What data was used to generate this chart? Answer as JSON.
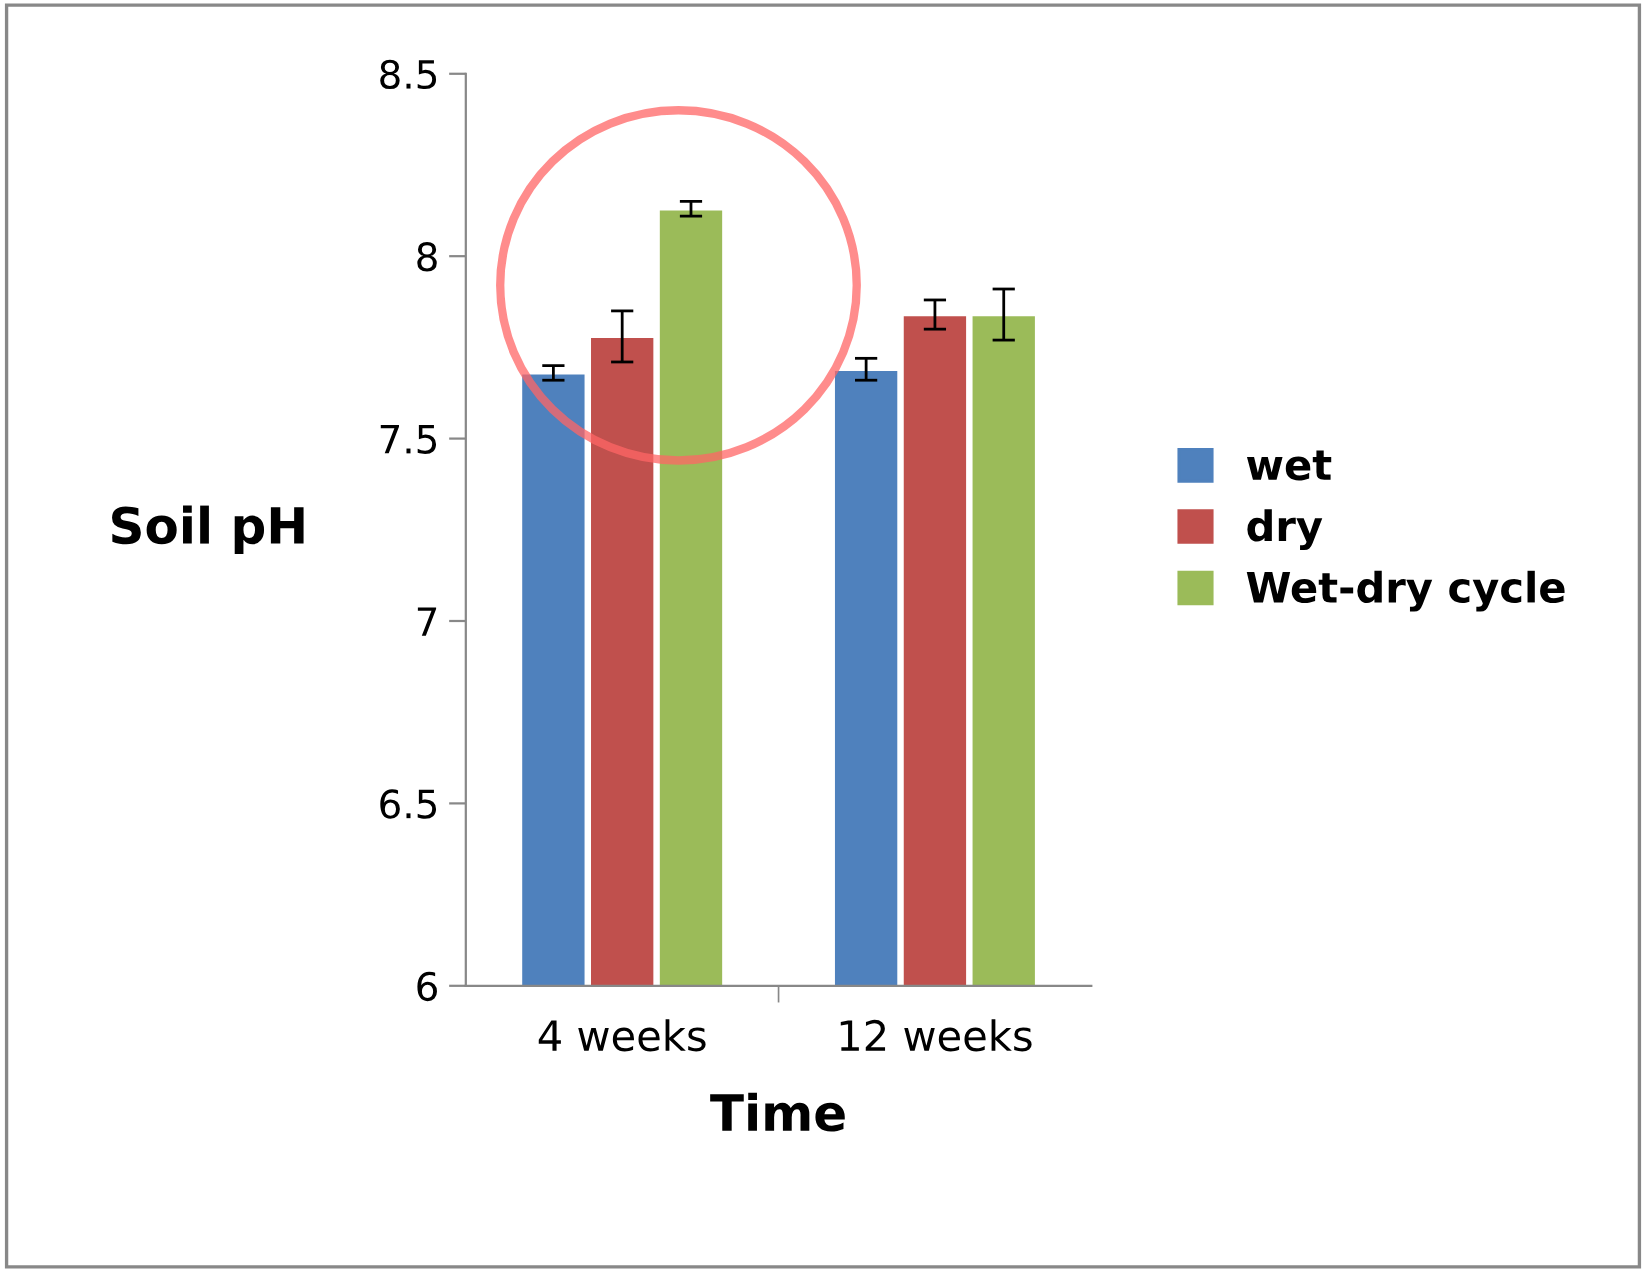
{
  "chart_data": {
    "type": "bar",
    "xlabel": "Time",
    "ylabel": "Soil pH",
    "categories": [
      "4 weeks",
      "12 weeks"
    ],
    "series": [
      {
        "name": "wet",
        "color": "#4f81bd",
        "values": [
          7.68,
          7.69
        ],
        "errors": [
          0.02,
          0.03
        ]
      },
      {
        "name": "dry",
        "color": "#c0504d",
        "values": [
          7.78,
          7.84
        ],
        "errors": [
          0.07,
          0.04
        ]
      },
      {
        "name": "Wet-dry cycle",
        "color": "#9bbb59",
        "values": [
          8.13,
          7.84
        ],
        "errors": [
          0.02,
          0.07
        ]
      }
    ],
    "ylim": [
      6,
      8.5
    ],
    "yticks": [
      6,
      6.5,
      7,
      7.5,
      8,
      8.5
    ],
    "grid": false,
    "legend": "right"
  }
}
